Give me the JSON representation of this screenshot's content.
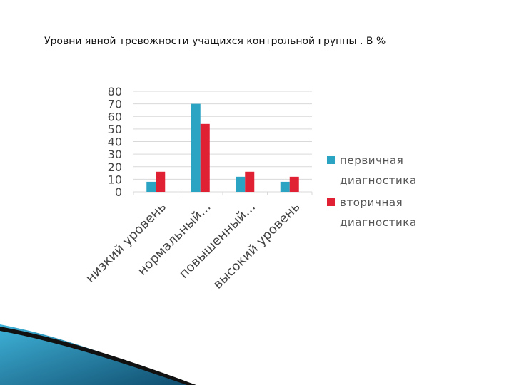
{
  "slide": {
    "title": "Уровни явной тревожности учащихся контрольной группы . В %"
  },
  "colors": {
    "primary": "#2ba3c2",
    "secondary": "#e02033",
    "grid": "#d9d9d9",
    "axis_text": "#444444",
    "legend_text": "#555555",
    "deco_dark": "#0f4d6e",
    "deco_light": "#3fb2d8"
  },
  "chart_data": {
    "type": "bar",
    "title": "",
    "xlabel": "",
    "ylabel": "",
    "ylim": [
      0,
      80
    ],
    "yticks": [
      0,
      10,
      20,
      30,
      40,
      50,
      60,
      70,
      80
    ],
    "grid": true,
    "legend_position": "right",
    "categories": [
      "низкий уровень",
      "нормальный...",
      "повышенный...",
      "высокий уровень"
    ],
    "series": [
      {
        "name": "первичная диагностика",
        "values": [
          8,
          70,
          12,
          8
        ]
      },
      {
        "name": "вторичная диагностика",
        "values": [
          16,
          54,
          16,
          12
        ]
      }
    ]
  }
}
